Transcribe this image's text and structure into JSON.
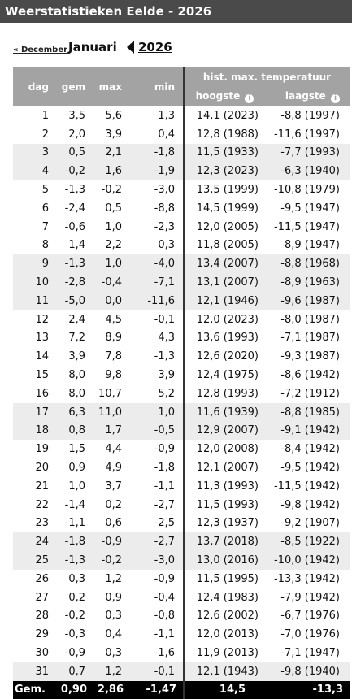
{
  "title": "Weerstatistieken Eelde - 2026",
  "nav": {
    "prev_label": "« December",
    "month": "Januari",
    "year": "2026"
  },
  "headers": {
    "dag": "dag",
    "gem": "gem",
    "max": "max",
    "min": "min",
    "hist": "hist. max. temperatuur",
    "hoogste": "hoogste",
    "laagste": "laagste",
    "info_icon": "i"
  },
  "rows": [
    {
      "dag": "1",
      "gem": "3,5",
      "max": "5,6",
      "min": "1,3",
      "hoogste": "14,1 (2023)",
      "laagste": "-8,8 (1997)"
    },
    {
      "dag": "2",
      "gem": "2,0",
      "max": "3,9",
      "min": "0,4",
      "hoogste": "12,8 (1988)",
      "laagste": "-11,6 (1997)"
    },
    {
      "dag": "3",
      "gem": "0,5",
      "max": "2,1",
      "min": "-1,8",
      "hoogste": "11,5 (1933)",
      "laagste": "-7,7 (1993)"
    },
    {
      "dag": "4",
      "gem": "-0,2",
      "max": "1,6",
      "min": "-1,9",
      "hoogste": "12,3 (2023)",
      "laagste": "-6,3 (1940)"
    },
    {
      "dag": "5",
      "gem": "-1,3",
      "max": "-0,2",
      "min": "-3,0",
      "hoogste": "13,5 (1999)",
      "laagste": "-10,8 (1979)"
    },
    {
      "dag": "6",
      "gem": "-2,4",
      "max": "0,5",
      "min": "-8,8",
      "hoogste": "14,5 (1999)",
      "laagste": "-9,5 (1947)"
    },
    {
      "dag": "7",
      "gem": "-0,6",
      "max": "1,0",
      "min": "-2,3",
      "hoogste": "12,0 (2005)",
      "laagste": "-11,5 (1947)"
    },
    {
      "dag": "8",
      "gem": "1,4",
      "max": "2,2",
      "min": "0,3",
      "hoogste": "11,8 (2005)",
      "laagste": "-8,9 (1947)"
    },
    {
      "dag": "9",
      "gem": "-1,3",
      "max": "1,0",
      "min": "-4,0",
      "hoogste": "13,4 (2007)",
      "laagste": "-8,8 (1968)"
    },
    {
      "dag": "10",
      "gem": "-2,8",
      "max": "-0,4",
      "min": "-7,1",
      "hoogste": "13,1 (2007)",
      "laagste": "-8,9 (1963)"
    },
    {
      "dag": "11",
      "gem": "-5,0",
      "max": "0,0",
      "min": "-11,6",
      "hoogste": "12,1 (1946)",
      "laagste": "-9,6 (1987)"
    },
    {
      "dag": "12",
      "gem": "2,4",
      "max": "4,5",
      "min": "-0,1",
      "hoogste": "12,0 (2023)",
      "laagste": "-8,0 (1987)"
    },
    {
      "dag": "13",
      "gem": "7,2",
      "max": "8,9",
      "min": "4,3",
      "hoogste": "13,6 (1993)",
      "laagste": "-7,1 (1987)"
    },
    {
      "dag": "14",
      "gem": "3,9",
      "max": "7,8",
      "min": "-1,3",
      "hoogste": "12,6 (2020)",
      "laagste": "-9,3 (1987)"
    },
    {
      "dag": "15",
      "gem": "8,0",
      "max": "9,8",
      "min": "3,9",
      "hoogste": "12,4 (1975)",
      "laagste": "-8,6 (1942)"
    },
    {
      "dag": "16",
      "gem": "8,0",
      "max": "10,7",
      "min": "5,2",
      "hoogste": "12,8 (1993)",
      "laagste": "-7,2 (1912)"
    },
    {
      "dag": "17",
      "gem": "6,3",
      "max": "11,0",
      "min": "1,0",
      "hoogste": "11,6 (1939)",
      "laagste": "-8,8 (1985)"
    },
    {
      "dag": "18",
      "gem": "0,8",
      "max": "1,7",
      "min": "-0,5",
      "hoogste": "12,9 (2007)",
      "laagste": "-9,1 (1942)"
    },
    {
      "dag": "19",
      "gem": "1,5",
      "max": "4,4",
      "min": "-0,9",
      "hoogste": "12,0 (2008)",
      "laagste": "-8,4 (1942)"
    },
    {
      "dag": "20",
      "gem": "0,9",
      "max": "4,9",
      "min": "-1,8",
      "hoogste": "12,1 (2007)",
      "laagste": "-9,5 (1942)"
    },
    {
      "dag": "21",
      "gem": "1,0",
      "max": "3,7",
      "min": "-1,1",
      "hoogste": "11,3 (1993)",
      "laagste": "-11,5 (1942)"
    },
    {
      "dag": "22",
      "gem": "-1,4",
      "max": "0,2",
      "min": "-2,7",
      "hoogste": "11,5 (1993)",
      "laagste": "-9,8 (1942)"
    },
    {
      "dag": "23",
      "gem": "-1,1",
      "max": "0,6",
      "min": "-2,5",
      "hoogste": "12,3 (1937)",
      "laagste": "-9,2 (1907)"
    },
    {
      "dag": "24",
      "gem": "-1,8",
      "max": "-0,9",
      "min": "-2,7",
      "hoogste": "13,7 (2018)",
      "laagste": "-8,5 (1922)"
    },
    {
      "dag": "25",
      "gem": "-1,3",
      "max": "-0,2",
      "min": "-3,0",
      "hoogste": "13,0 (2016)",
      "laagste": "-10,0 (1942)"
    },
    {
      "dag": "26",
      "gem": "0,3",
      "max": "1,2",
      "min": "-0,9",
      "hoogste": "11,5 (1995)",
      "laagste": "-13,3 (1942)"
    },
    {
      "dag": "27",
      "gem": "0,2",
      "max": "0,9",
      "min": "-0,4",
      "hoogste": "12,4 (1983)",
      "laagste": "-7,9 (1942)"
    },
    {
      "dag": "28",
      "gem": "-0,2",
      "max": "0,3",
      "min": "-0,8",
      "hoogste": "12,6 (2002)",
      "laagste": "-6,7 (1976)"
    },
    {
      "dag": "29",
      "gem": "-0,3",
      "max": "0,4",
      "min": "-1,1",
      "hoogste": "12,0 (2013)",
      "laagste": "-7,0 (1976)"
    },
    {
      "dag": "30",
      "gem": "-0,9",
      "max": "0,3",
      "min": "-1,6",
      "hoogste": "11,9 (2013)",
      "laagste": "-7,1 (1947)"
    },
    {
      "dag": "31",
      "gem": "0,7",
      "max": "1,2",
      "min": "-0,1",
      "hoogste": "12,1 (1943)",
      "laagste": "-9,8 (1940)"
    }
  ],
  "footer": {
    "label": "Gem.",
    "gem": "0,90",
    "max": "2,86",
    "min": "-1,47",
    "hoogste": "14,5",
    "laagste": "-13,3"
  }
}
